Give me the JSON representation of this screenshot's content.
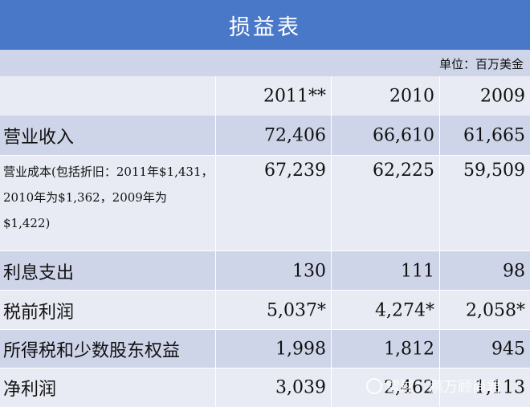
{
  "title": "损益表",
  "unit": "单位：百万美金",
  "columns": [
    "2011**",
    "2010",
    "2009"
  ],
  "rows": [
    {
      "label": "营业收入",
      "values": [
        "72,406",
        "66,610",
        "61,665"
      ]
    },
    {
      "label": "营业成本(包括折旧：2011年$1,431，2010年为$1,362，2009年为$1,422)",
      "values": [
        "67,239",
        "62,225",
        "59,509"
      ]
    },
    {
      "label": "利息支出",
      "values": [
        "130",
        "111",
        "98"
      ]
    },
    {
      "label": "税前利润",
      "values": [
        "5,037*",
        "4,274*",
        "2,058*"
      ]
    },
    {
      "label": "所得税和少数股东权益",
      "values": [
        "1,998",
        "1,812",
        "945"
      ]
    },
    {
      "label": "净利润",
      "values": [
        "3,039",
        "2,462",
        "1,113"
      ]
    }
  ],
  "watermark": "雪球：鹏万顾尚君",
  "colors": {
    "header": "#4a78c9",
    "row_dark": "#cfd5e9",
    "row_light": "#e9ebf4"
  }
}
